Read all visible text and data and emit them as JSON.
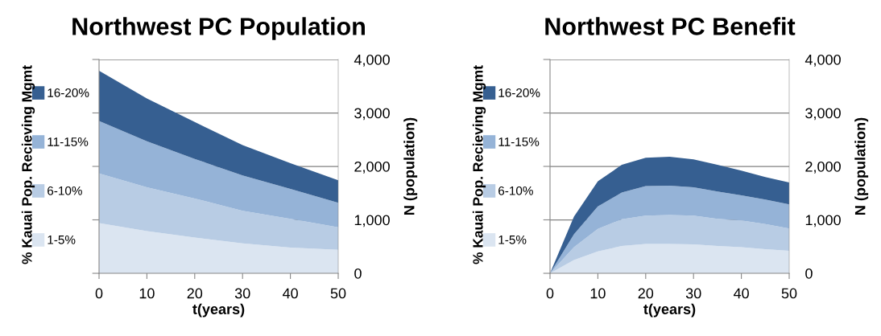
{
  "chart_data": [
    {
      "type": "area",
      "title": "Northwest PC Population",
      "xlabel": "t(years)",
      "ylabel": "N (population)",
      "legend_title": "% Kauai Pop. Recieving Mgmt",
      "stacked": true,
      "legend": "left",
      "grid": "y",
      "x": [
        0,
        10,
        20,
        30,
        40,
        50
      ],
      "series": [
        {
          "name": "1-5%",
          "color": "#dbe5f1",
          "values": [
            940,
            790,
            670,
            560,
            480,
            440
          ]
        },
        {
          "name": "6-10%",
          "color": "#b8cce4",
          "values": [
            930,
            820,
            730,
            610,
            540,
            420
          ]
        },
        {
          "name": "11-15%",
          "color": "#95b3d7",
          "values": [
            980,
            860,
            740,
            660,
            560,
            460
          ]
        },
        {
          "name": "16-20%",
          "color": "#365f91",
          "values": [
            940,
            800,
            690,
            570,
            480,
            420
          ]
        }
      ],
      "xlim": [
        0,
        50
      ],
      "xticks": [
        0,
        10,
        20,
        30,
        40,
        50
      ],
      "ylim": [
        0,
        4000
      ],
      "yticks": [
        0,
        {
          "value": 1000,
          "label": "1,000"
        },
        {
          "value": 2000,
          "label": "2,000"
        },
        {
          "value": 3000,
          "label": "3,000"
        },
        {
          "value": 4000,
          "label": "4,000"
        }
      ]
    },
    {
      "type": "area",
      "title": "Northwest PC Benefit",
      "xlabel": "t(years)",
      "ylabel": "N (population)",
      "legend_title": "% Kauai Pop. Recieving Mgmt",
      "stacked": true,
      "legend": "left",
      "grid": "y",
      "x": [
        0,
        5,
        10,
        15,
        20,
        25,
        30,
        35,
        40,
        45,
        50
      ],
      "series": [
        {
          "name": "1-5%",
          "color": "#dbe5f1",
          "values": [
            0,
            250,
            410,
            510,
            550,
            550,
            540,
            510,
            490,
            450,
            420
          ]
        },
        {
          "name": "6-10%",
          "color": "#b8cce4",
          "values": [
            0,
            240,
            420,
            500,
            530,
            540,
            540,
            510,
            500,
            470,
            420
          ]
        },
        {
          "name": "11-15%",
          "color": "#95b3d7",
          "values": [
            0,
            240,
            420,
            500,
            550,
            550,
            530,
            510,
            470,
            460,
            450
          ]
        },
        {
          "name": "16-20%",
          "color": "#365f91",
          "values": [
            0,
            330,
            470,
            520,
            530,
            540,
            520,
            500,
            460,
            420,
            410
          ]
        }
      ],
      "xlim": [
        0,
        50
      ],
      "xticks": [
        0,
        10,
        20,
        30,
        40,
        50
      ],
      "ylim": [
        0,
        4000
      ],
      "yticks": [
        0,
        {
          "value": 1000,
          "label": "1,000"
        },
        {
          "value": 2000,
          "label": "2,000"
        },
        {
          "value": 3000,
          "label": "3,000"
        },
        {
          "value": 4000,
          "label": "4,000"
        }
      ]
    }
  ]
}
